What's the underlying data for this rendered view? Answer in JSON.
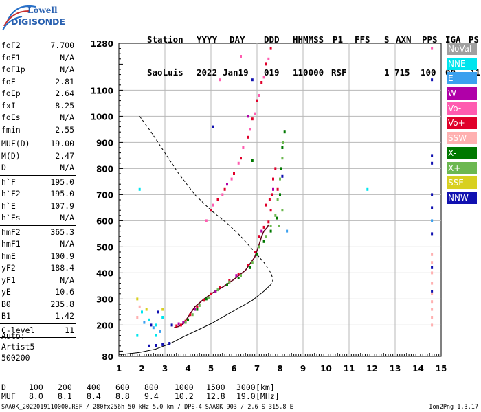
{
  "logo": {
    "line1": "Lowell",
    "line2": "DIGISONDE"
  },
  "header": {
    "labels": [
      "Station",
      "YYYY",
      "DAY",
      "DDD",
      "HHMMSS",
      "P1",
      "FFS",
      "S",
      "AXN",
      "PPS",
      "IGA",
      "PS"
    ],
    "values": [
      "SaoLuis",
      "2022",
      "Jan19",
      "019",
      "110000",
      "RSF",
      "",
      "1",
      "715",
      "100",
      "00-",
      "11"
    ]
  },
  "params": [
    {
      "label": "foF2",
      "value": "7.700"
    },
    {
      "label": "foF1",
      "value": "N/A"
    },
    {
      "label": "foF1p",
      "value": "N/A"
    },
    {
      "label": "foE",
      "value": "2.81"
    },
    {
      "label": "foEp",
      "value": "2.64"
    },
    {
      "label": "fxI",
      "value": "8.25"
    },
    {
      "label": "foEs",
      "value": "N/A"
    },
    {
      "label": "fmin",
      "value": "2.55"
    },
    {
      "sep": true
    },
    {
      "label": "MUF(D)",
      "value": "19.00"
    },
    {
      "label": "M(D)",
      "value": "2.47"
    },
    {
      "label": "D",
      "value": "N/A"
    },
    {
      "sep": true
    },
    {
      "label": "h`F",
      "value": "195.0"
    },
    {
      "label": "h`F2",
      "value": "195.0"
    },
    {
      "label": "h`E",
      "value": "107.9"
    },
    {
      "label": "h`Es",
      "value": "N/A"
    },
    {
      "sep": true
    },
    {
      "label": "hmF2",
      "value": "365.3"
    },
    {
      "label": "hmF1",
      "value": "N/A"
    },
    {
      "label": "hmE",
      "value": "100.9"
    },
    {
      "label": "yF2",
      "value": "188.4"
    },
    {
      "label": "yF1",
      "value": "N/A"
    },
    {
      "label": "yE",
      "value": "10.6"
    },
    {
      "label": "B0",
      "value": "235.8"
    },
    {
      "label": "B1",
      "value": "1.42"
    },
    {
      "sep": true
    },
    {
      "label": "C-level",
      "value": "11"
    },
    {
      "sep": true
    }
  ],
  "auto_block": {
    "line1": "Auto:",
    "line2": "Artist5",
    "line3": "500200"
  },
  "legend": [
    {
      "label": "NoVal",
      "color": "#a0a0a0"
    },
    {
      "label": "NNE",
      "color": "#00e5ee"
    },
    {
      "label": "E",
      "color": "#3aa0ef"
    },
    {
      "label": "W",
      "color": "#b000a8"
    },
    {
      "label": "Vo-",
      "color": "#ff5cb0"
    },
    {
      "label": "Vo+",
      "color": "#e0002a"
    },
    {
      "label": "SSW",
      "color": "#ffb0b0"
    },
    {
      "label": "X-",
      "color": "#007800"
    },
    {
      "label": "X+",
      "color": "#6cb850"
    },
    {
      "label": "SSE",
      "color": "#d8d020"
    },
    {
      "label": "NNW",
      "color": "#1010b0"
    }
  ],
  "distance_table": {
    "d_label": "D",
    "d_values": [
      "100",
      "200",
      "400",
      "600",
      "800",
      "1000",
      "1500",
      "3000"
    ],
    "d_unit": "[km]",
    "muf_label": "MUF",
    "muf_values": [
      "8.0",
      "8.1",
      "8.4",
      "8.8",
      "9.4",
      "10.2",
      "12.8",
      "19.0"
    ],
    "muf_unit": "[MHz]"
  },
  "footer": {
    "left": "SAA0K_2022019110000.RSF / 280fx256h 50 kHz 5.0 km / DPS-4 SAA0K 903 / 2.6 S 315.8 E",
    "right": "Ion2Png 1.3.17"
  },
  "chart_data": {
    "type": "scatter",
    "x_ticks": [
      "1",
      "2",
      "3",
      "4",
      "5",
      "6",
      "7",
      "8",
      "9",
      "10",
      "11",
      "12",
      "13",
      "14",
      "15"
    ],
    "y_ticks": [
      "80",
      "200",
      "300",
      "400",
      "500",
      "600",
      "700",
      "800",
      "900",
      "1000",
      "1100",
      "1280"
    ],
    "xlim": [
      1,
      15
    ],
    "ylim": [
      80,
      1280
    ],
    "grid": true,
    "series": [
      {
        "name": "Vo+",
        "color": "#e0002a",
        "points": [
          [
            3.5,
            197
          ],
          [
            3.7,
            200
          ],
          [
            3.9,
            215
          ],
          [
            4.1,
            240
          ],
          [
            4.4,
            270
          ],
          [
            4.7,
            295
          ],
          [
            5.0,
            320
          ],
          [
            5.4,
            345
          ],
          [
            5.8,
            370
          ],
          [
            6.2,
            395
          ],
          [
            6.6,
            430
          ],
          [
            6.9,
            480
          ],
          [
            7.1,
            540
          ],
          [
            7.3,
            575
          ],
          [
            7.5,
            595
          ],
          [
            7.6,
            640
          ],
          [
            7.65,
            700
          ],
          [
            7.7,
            760
          ],
          [
            7.8,
            800
          ],
          [
            7.9,
            720
          ],
          [
            7.4,
            660
          ],
          [
            7.55,
            680
          ],
          [
            5.0,
            640
          ],
          [
            5.3,
            680
          ],
          [
            5.6,
            720
          ],
          [
            6.0,
            780
          ],
          [
            6.3,
            840
          ],
          [
            6.6,
            920
          ],
          [
            6.8,
            990
          ],
          [
            7.0,
            1060
          ],
          [
            7.2,
            1130
          ],
          [
            7.4,
            1200
          ],
          [
            7.6,
            1260
          ]
        ]
      },
      {
        "name": "Vo-",
        "color": "#ff5cb0",
        "points": [
          [
            4.8,
            600
          ],
          [
            5.1,
            660
          ],
          [
            5.5,
            700
          ],
          [
            5.9,
            760
          ],
          [
            6.2,
            820
          ],
          [
            6.4,
            880
          ],
          [
            6.7,
            950
          ],
          [
            6.9,
            1010
          ],
          [
            7.1,
            1080
          ],
          [
            7.3,
            1150
          ],
          [
            7.5,
            1220
          ],
          [
            6.3,
            1230
          ],
          [
            5.4,
            1140
          ],
          [
            14.6,
            1260
          ]
        ]
      },
      {
        "name": "X+",
        "color": "#6cb850",
        "points": [
          [
            3.9,
            210
          ],
          [
            4.2,
            240
          ],
          [
            4.5,
            275
          ],
          [
            4.9,
            305
          ],
          [
            5.3,
            335
          ],
          [
            5.8,
            365
          ],
          [
            6.3,
            390
          ],
          [
            6.8,
            440
          ],
          [
            7.1,
            500
          ],
          [
            7.4,
            540
          ],
          [
            7.6,
            580
          ],
          [
            7.8,
            620
          ],
          [
            7.9,
            680
          ],
          [
            8.0,
            760
          ],
          [
            8.1,
            840
          ],
          [
            8.15,
            900
          ],
          [
            8.1,
            640
          ],
          [
            7.95,
            580
          ]
        ]
      },
      {
        "name": "X-",
        "color": "#007800",
        "points": [
          [
            4.0,
            220
          ],
          [
            4.4,
            260
          ],
          [
            4.8,
            300
          ],
          [
            5.2,
            330
          ],
          [
            5.7,
            355
          ],
          [
            6.2,
            380
          ],
          [
            6.7,
            420
          ],
          [
            7.0,
            470
          ],
          [
            7.3,
            520
          ],
          [
            7.6,
            560
          ],
          [
            7.85,
            610
          ],
          [
            8.0,
            700
          ],
          [
            8.05,
            800
          ],
          [
            8.1,
            880
          ],
          [
            8.2,
            940
          ],
          [
            6.8,
            830
          ]
        ]
      },
      {
        "name": "W",
        "color": "#b000a8",
        "points": [
          [
            3.6,
            205
          ],
          [
            3.8,
            210
          ],
          [
            4.3,
            260
          ],
          [
            5.2,
            330
          ],
          [
            6.1,
            390
          ],
          [
            7.2,
            560
          ],
          [
            7.7,
            720
          ],
          [
            5.7,
            740
          ],
          [
            6.6,
            1000
          ]
        ]
      },
      {
        "name": "NNW",
        "color": "#1010b0",
        "points": [
          [
            2.3,
            120
          ],
          [
            2.6,
            122
          ],
          [
            2.9,
            125
          ],
          [
            3.2,
            130
          ],
          [
            3.3,
            200
          ],
          [
            5.1,
            960
          ],
          [
            6.8,
            1140
          ],
          [
            8.1,
            770
          ],
          [
            14.6,
            1140
          ],
          [
            14.6,
            850
          ],
          [
            14.6,
            820
          ],
          [
            14.6,
            700
          ],
          [
            14.6,
            650
          ],
          [
            14.6,
            550
          ],
          [
            14.6,
            420
          ],
          [
            14.6,
            330
          ],
          [
            2.4,
            200
          ],
          [
            2.7,
            250
          ]
        ]
      },
      {
        "name": "NNE",
        "color": "#00e5ee",
        "points": [
          [
            1.9,
            720
          ],
          [
            2.0,
            250
          ],
          [
            2.3,
            220
          ],
          [
            2.6,
            200
          ],
          [
            2.9,
            230
          ],
          [
            1.8,
            160
          ],
          [
            2.6,
            160
          ],
          [
            11.8,
            720
          ]
        ]
      },
      {
        "name": "E",
        "color": "#3aa0ef",
        "points": [
          [
            2.1,
            210
          ],
          [
            2.5,
            190
          ],
          [
            2.8,
            175
          ],
          [
            8.3,
            560
          ],
          [
            14.6,
            600
          ]
        ]
      },
      {
        "name": "SSW",
        "color": "#ffb0b0",
        "points": [
          [
            14.6,
            470
          ],
          [
            14.6,
            440
          ],
          [
            14.6,
            400
          ],
          [
            14.6,
            360
          ],
          [
            14.6,
            320
          ],
          [
            14.6,
            290
          ],
          [
            14.6,
            260
          ],
          [
            14.6,
            230
          ],
          [
            14.6,
            200
          ],
          [
            1.8,
            230
          ],
          [
            1.9,
            270
          ]
        ]
      },
      {
        "name": "SSE",
        "color": "#d8d020",
        "points": [
          [
            2.9,
            260
          ],
          [
            2.2,
            260
          ],
          [
            1.8,
            300
          ]
        ]
      }
    ],
    "curves": [
      {
        "name": "profile",
        "style": "dashed",
        "points": [
          [
            1.9,
            1000
          ],
          [
            2.4,
            940
          ],
          [
            3.0,
            860
          ],
          [
            3.6,
            780
          ],
          [
            4.3,
            700
          ],
          [
            5.0,
            640
          ],
          [
            5.7,
            590
          ],
          [
            6.3,
            540
          ],
          [
            6.8,
            490
          ],
          [
            7.3,
            440
          ],
          [
            7.6,
            400
          ],
          [
            7.7,
            375
          ],
          [
            7.6,
            355
          ]
        ]
      },
      {
        "name": "profile",
        "style": "solid",
        "points": [
          [
            7.6,
            355
          ],
          [
            7.3,
            330
          ],
          [
            6.8,
            295
          ],
          [
            6.2,
            265
          ],
          [
            5.6,
            235
          ],
          [
            5.0,
            205
          ],
          [
            4.4,
            180
          ],
          [
            3.8,
            155
          ],
          [
            3.2,
            128
          ],
          [
            2.6,
            108
          ],
          [
            1.9,
            95
          ],
          [
            1.2,
            88
          ],
          [
            1.0,
            87
          ]
        ]
      },
      {
        "name": "trace",
        "style": "solid-dark",
        "points": [
          [
            3.4,
            190
          ],
          [
            3.6,
            195
          ],
          [
            3.8,
            205
          ],
          [
            4.0,
            230
          ],
          [
            4.3,
            270
          ],
          [
            4.7,
            300
          ],
          [
            5.1,
            325
          ],
          [
            5.5,
            345
          ],
          [
            6.0,
            375
          ],
          [
            6.5,
            410
          ],
          [
            6.9,
            460
          ],
          [
            7.1,
            510
          ],
          [
            7.2,
            540
          ],
          [
            7.3,
            560
          ],
          [
            7.45,
            575
          ],
          [
            7.5,
            585
          ]
        ]
      }
    ]
  }
}
